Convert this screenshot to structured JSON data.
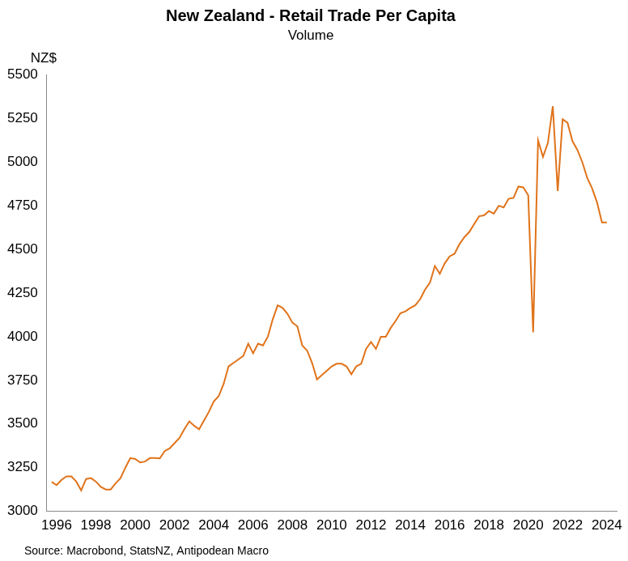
{
  "chart_data": {
    "type": "line",
    "title": "New Zealand - Retail Trade Per Capita",
    "subtitle": "Volume",
    "y_label": "NZ$",
    "source": "Source: Macrobond, StatsNZ, Antipodean Macro",
    "x": [
      1995.75,
      1996,
      1996.25,
      1996.5,
      1996.75,
      1997,
      1997.25,
      1997.5,
      1997.75,
      1998,
      1998.25,
      1998.5,
      1998.75,
      1999,
      1999.25,
      1999.5,
      1999.75,
      2000,
      2000.25,
      2000.5,
      2000.75,
      2001,
      2001.25,
      2001.5,
      2001.75,
      2002,
      2002.25,
      2002.5,
      2002.75,
      2003,
      2003.25,
      2003.5,
      2003.75,
      2004,
      2004.25,
      2004.5,
      2004.75,
      2005,
      2005.25,
      2005.5,
      2005.75,
      2006,
      2006.25,
      2006.5,
      2006.75,
      2007,
      2007.25,
      2007.5,
      2007.75,
      2008,
      2008.25,
      2008.5,
      2008.75,
      2009,
      2009.25,
      2009.5,
      2009.75,
      2010,
      2010.25,
      2010.5,
      2010.75,
      2011,
      2011.25,
      2011.5,
      2011.75,
      2012,
      2012.25,
      2012.5,
      2012.75,
      2013,
      2013.25,
      2013.5,
      2013.75,
      2014,
      2014.25,
      2014.5,
      2014.75,
      2015,
      2015.25,
      2015.5,
      2015.75,
      2016,
      2016.25,
      2016.5,
      2016.75,
      2017,
      2017.25,
      2017.5,
      2017.75,
      2018,
      2018.25,
      2018.5,
      2018.75,
      2019,
      2019.25,
      2019.5,
      2019.75,
      2020,
      2020.25,
      2020.5,
      2020.75,
      2021,
      2021.25,
      2021.5,
      2021.75,
      2022,
      2022.25,
      2022.5,
      2022.75,
      2023,
      2023.25,
      2023.5,
      2023.75,
      2024
    ],
    "values": [
      3168,
      3150,
      3180,
      3200,
      3200,
      3170,
      3120,
      3185,
      3190,
      3170,
      3140,
      3125,
      3125,
      3160,
      3190,
      3250,
      3305,
      3300,
      3280,
      3285,
      3305,
      3305,
      3303,
      3345,
      3360,
      3390,
      3420,
      3470,
      3515,
      3490,
      3470,
      3520,
      3570,
      3630,
      3660,
      3730,
      3830,
      3850,
      3870,
      3890,
      3960,
      3905,
      3960,
      3950,
      4000,
      4100,
      4180,
      4165,
      4130,
      4080,
      4060,
      3950,
      3920,
      3850,
      3755,
      3780,
      3805,
      3830,
      3845,
      3845,
      3830,
      3785,
      3830,
      3845,
      3930,
      3970,
      3930,
      4000,
      4000,
      4050,
      4090,
      4135,
      4145,
      4165,
      4180,
      4215,
      4270,
      4310,
      4405,
      4360,
      4420,
      4460,
      4475,
      4530,
      4570,
      4600,
      4645,
      4690,
      4695,
      4720,
      4705,
      4750,
      4740,
      4790,
      4795,
      4860,
      4855,
      4810,
      4025,
      5125,
      5030,
      5110,
      5320,
      4835,
      5245,
      5225,
      5120,
      5070,
      5000,
      4910,
      4850,
      4770,
      4655,
      4655
    ],
    "color": "#e0731a",
    "xlim": [
      1995.5,
      2024.5
    ],
    "xticks": [
      1996,
      1998,
      2000,
      2002,
      2004,
      2006,
      2008,
      2010,
      2012,
      2014,
      2016,
      2018,
      2020,
      2022,
      2024
    ],
    "ylim": [
      3000,
      5500
    ],
    "yticks": [
      3000,
      3250,
      3500,
      3750,
      4000,
      4250,
      4500,
      4750,
      5000,
      5250,
      5500
    ],
    "grid": false
  }
}
